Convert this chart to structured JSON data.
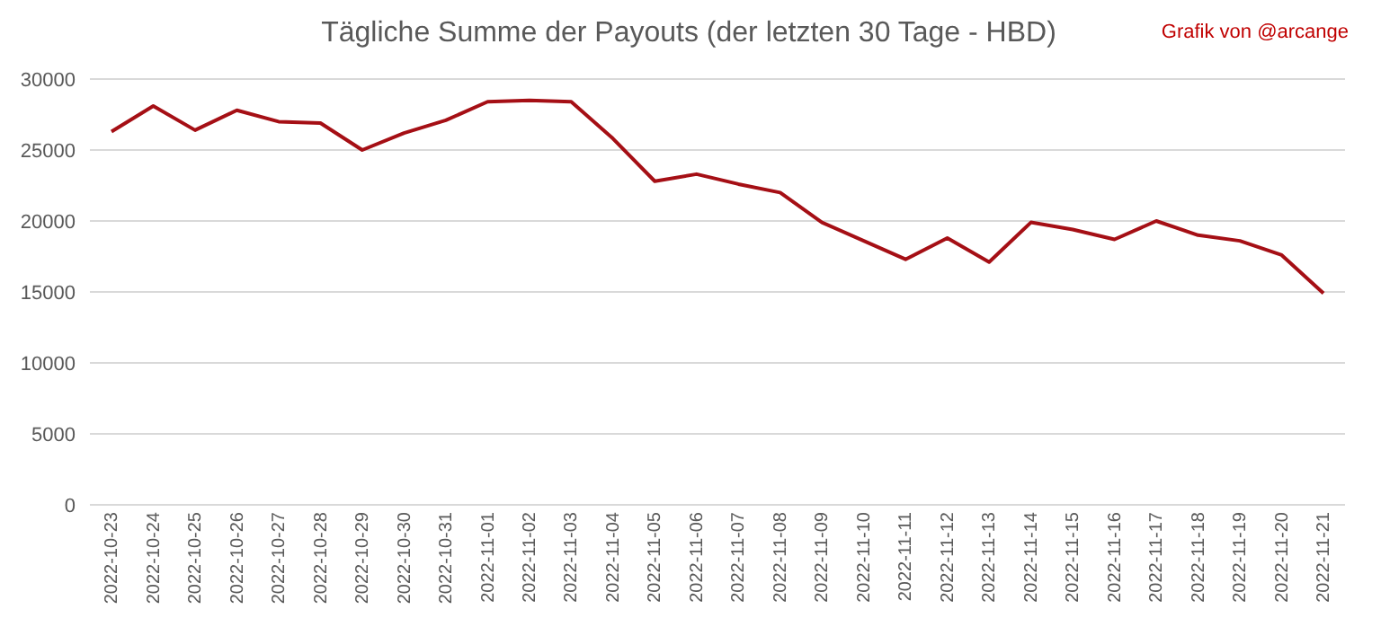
{
  "chart_data": {
    "type": "line",
    "title": "Tägliche Summe der Payouts (der letzten 30 Tage - HBD)",
    "annotations": [
      "Grafik von @arcange"
    ],
    "categories": [
      "2022-10-23",
      "2022-10-24",
      "2022-10-25",
      "2022-10-26",
      "2022-10-27",
      "2022-10-28",
      "2022-10-29",
      "2022-10-30",
      "2022-10-31",
      "2022-11-01",
      "2022-11-02",
      "2022-11-03",
      "2022-11-04",
      "2022-11-05",
      "2022-11-06",
      "2022-11-07",
      "2022-11-08",
      "2022-11-09",
      "2022-11-10",
      "2022-11-11",
      "2022-11-12",
      "2022-11-13",
      "2022-11-14",
      "2022-11-15",
      "2022-11-16",
      "2022-11-17",
      "2022-11-18",
      "2022-11-19",
      "2022-11-20",
      "2022-11-21"
    ],
    "series": [
      {
        "color": "#a50f15",
        "values": [
          26300,
          28100,
          26400,
          27800,
          27000,
          26900,
          25000,
          26200,
          27100,
          28400,
          28500,
          28400,
          25800,
          22800,
          23300,
          22600,
          22000,
          19900,
          18600,
          17300,
          18800,
          17100,
          19900,
          19400,
          18700,
          20000,
          19000,
          18600,
          17600,
          14900
        ]
      }
    ],
    "ylim": [
      0,
      30000
    ],
    "yticks": [
      0,
      5000,
      10000,
      15000,
      20000,
      25000,
      30000
    ],
    "grid": "y",
    "legend": false,
    "marker": "none",
    "line_style": "solid"
  }
}
